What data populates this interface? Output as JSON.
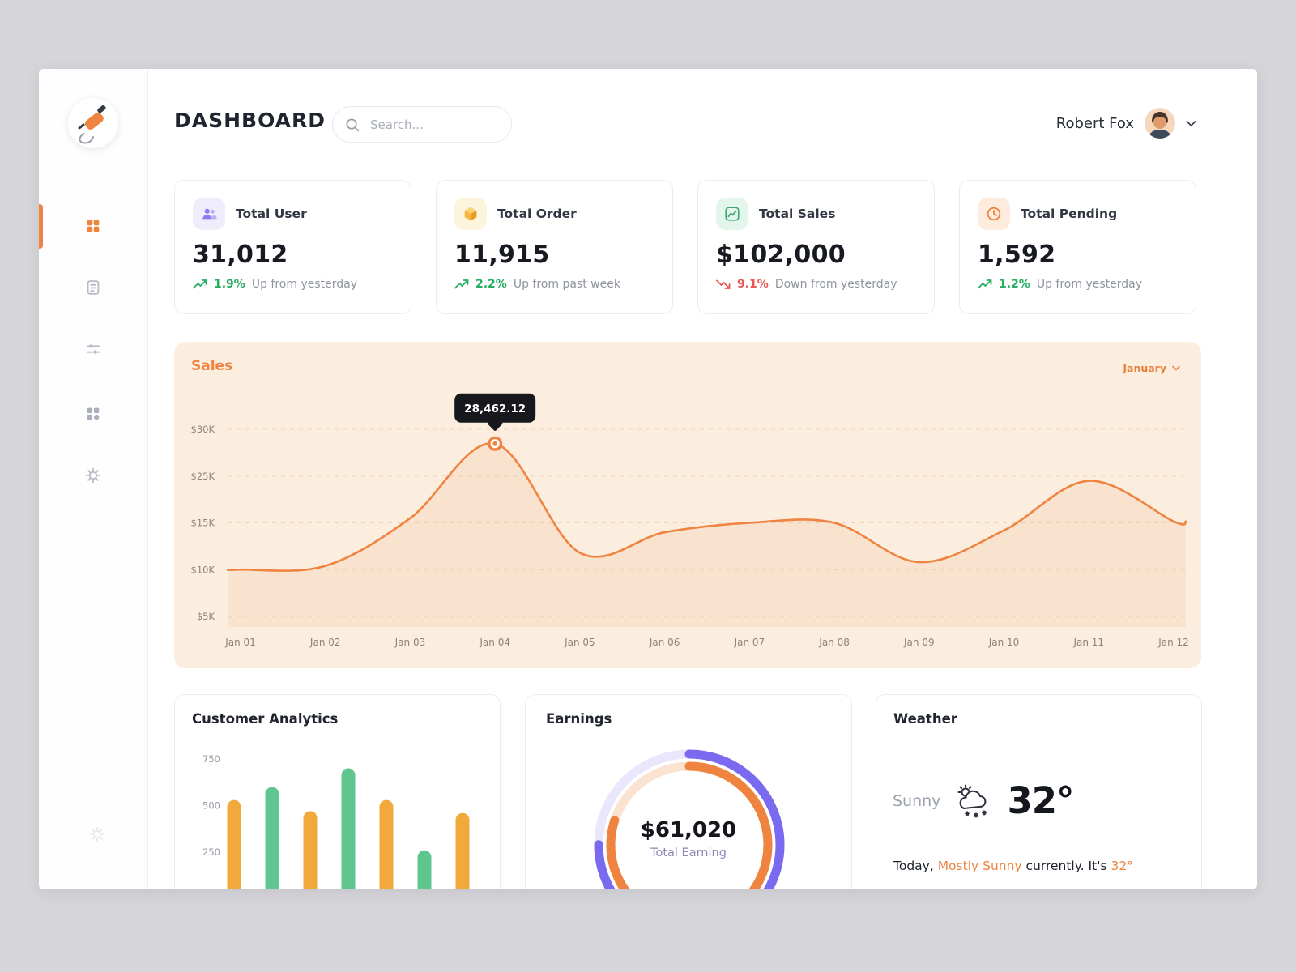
{
  "header": {
    "title": "DASHBOARD",
    "search_placeholder": "Search...",
    "user_name": "Robert Fox"
  },
  "sidebar": {
    "items": [
      {
        "icon": "dashboard-grid-icon",
        "active": true
      },
      {
        "icon": "document-icon",
        "active": false
      },
      {
        "icon": "filters-icon",
        "active": false
      },
      {
        "icon": "apps-blocks-icon",
        "active": false
      },
      {
        "icon": "settings-gear-icon",
        "active": false
      }
    ]
  },
  "stats": [
    {
      "label": "Total User",
      "value": "31,012",
      "trend_pct": "1.9%",
      "trend_text": "Up from yesterday",
      "direction": "up"
    },
    {
      "label": "Total Order",
      "value": "11,915",
      "trend_pct": "2.2%",
      "trend_text": "Up from past week",
      "direction": "up"
    },
    {
      "label": "Total Sales",
      "value": "$102,000",
      "trend_pct": "9.1%",
      "trend_text": "Down from yesterday",
      "direction": "down"
    },
    {
      "label": "Total Pending",
      "value": "1,592",
      "trend_pct": "1.2%",
      "trend_text": "Up from yesterday",
      "direction": "up"
    }
  ],
  "sales_panel": {
    "title": "Sales",
    "period": "January"
  },
  "customer_analytics": {
    "title": "Customer Analytics"
  },
  "earnings": {
    "title": "Earnings",
    "total": "$61,020",
    "caption": "Total Earning"
  },
  "weather": {
    "title": "Weather",
    "condition": "Sunny",
    "temperature": "32°",
    "line": {
      "p1": "Today, ",
      "p2": "Mostly Sunny",
      "p3": " currently. It's ",
      "p4": "32°"
    }
  },
  "chart_data": [
    {
      "type": "line",
      "title": "Sales",
      "x": [
        "Jan 01",
        "Jan 02",
        "Jan 03",
        "Jan 04",
        "Jan 05",
        "Jan 06",
        "Jan 07",
        "Jan 08",
        "Jan 09",
        "Jan 10",
        "Jan 11",
        "Jan 12"
      ],
      "values": [
        10,
        10.4,
        16,
        28.462,
        11.8,
        14,
        15,
        15,
        10.8,
        14.2,
        24,
        15.3
      ],
      "unit": "$K",
      "ytick_labels": [
        "$30K",
        "$25K",
        "$15K",
        "$10K",
        "$5K"
      ],
      "ytick_values": [
        30,
        25,
        15,
        10,
        5
      ],
      "grid": "dashed-horizontal",
      "legend": "none",
      "highlight": {
        "index": 3,
        "label": "28,462.12"
      },
      "line_color": "#EF8340",
      "fill_color": "rgba(239,131,64,0.10)"
    },
    {
      "type": "bar",
      "title": "Customer Analytics",
      "values": [
        530,
        600,
        470,
        700,
        530,
        260,
        460
      ],
      "bar_colors": [
        "#F2A93B",
        "#5FC68F",
        "#F2A93B",
        "#5FC68F",
        "#F2A93B",
        "#5FC68F",
        "#F2A93B"
      ],
      "ytick_labels": [
        "750",
        "500",
        "250"
      ],
      "ytick_values": [
        750,
        500,
        250
      ],
      "ylim": [
        0,
        800
      ]
    },
    {
      "type": "donut",
      "title": "Earnings",
      "series": [
        {
          "name": "outer-ring",
          "percent": 75,
          "color": "#7A6AF0",
          "track": "#EAE6FB"
        },
        {
          "name": "inner-ring",
          "percent": 80,
          "color": "#EF8340",
          "track": "#FAE3D0"
        }
      ],
      "center_value": "$61,020",
      "center_label": "Total Earning"
    }
  ]
}
